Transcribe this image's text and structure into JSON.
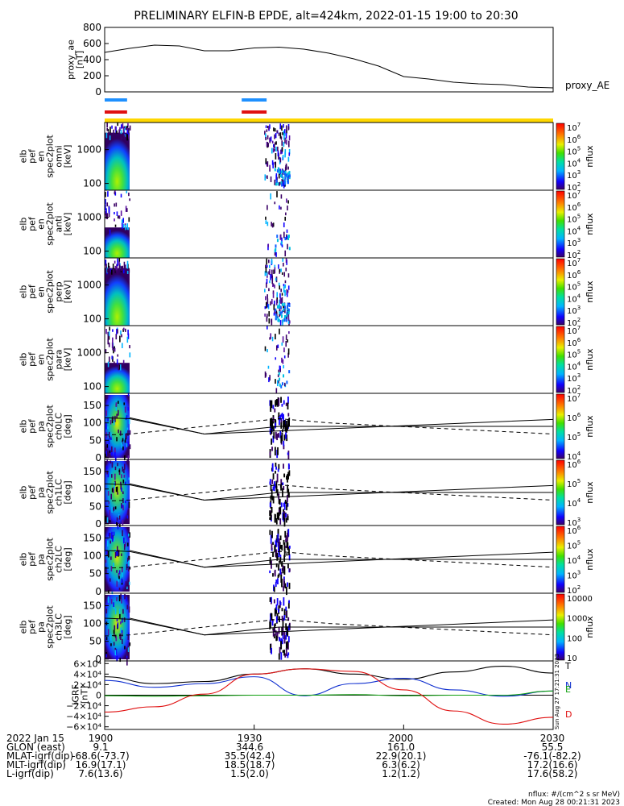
{
  "chart_data": {
    "type": "heatmap",
    "title": "PRELIMINARY ELFIN-B EPDE, alt=424km, 2022-01-15 19:00 to 20:30",
    "time_range": [
      "19:00",
      "20:30"
    ],
    "panels": [
      {
        "id": "proxy_ae",
        "type": "line",
        "ylabel": [
          "proxy_ae",
          "[nT]"
        ],
        "legend": "proxy_AE",
        "ylim": [
          0,
          800
        ],
        "yticks": [
          "0",
          "200",
          "400",
          "600",
          "800"
        ],
        "x_min": [
          0,
          5,
          10,
          15,
          20,
          25,
          30,
          35,
          40,
          45,
          50,
          55,
          60,
          65,
          70,
          75,
          80,
          85,
          90
        ],
        "values": [
          490,
          540,
          580,
          570,
          510,
          510,
          545,
          555,
          530,
          480,
          410,
          320,
          190,
          160,
          120,
          100,
          90,
          60,
          50
        ]
      },
      {
        "id": "sci_zone_bars",
        "type": "bar",
        "bars": [
          {
            "color": "#1e90ff",
            "intervals_min": [
              [
                0,
                4.5
              ],
              [
                27.5,
                32.5
              ]
            ]
          },
          {
            "color": "#e01010",
            "intervals_min": [
              [
                0,
                4.5
              ],
              [
                27.5,
                32.5
              ]
            ]
          },
          {
            "color": "#ffd700",
            "intervals_min": [
              [
                0,
                90
              ]
            ]
          }
        ]
      },
      {
        "id": "en_omni",
        "type": "heatmap",
        "ylabel": [
          "elb",
          "pef",
          "en",
          "spec2plot",
          "omni",
          "[keV]"
        ],
        "yticks": [
          "100",
          "1000"
        ],
        "zlabel": "nflux",
        "ztick_exps": [
          "2",
          "3",
          "4",
          "5",
          "6",
          "7"
        ]
      },
      {
        "id": "en_anti",
        "type": "heatmap",
        "ylabel": [
          "elb",
          "pef",
          "en",
          "spec2plot",
          "anti",
          "[keV]"
        ],
        "yticks": [
          "100",
          "1000"
        ],
        "zlabel": "nflux",
        "ztick_exps": [
          "2",
          "3",
          "4",
          "5",
          "6",
          "7"
        ]
      },
      {
        "id": "en_perp",
        "type": "heatmap",
        "ylabel": [
          "elb",
          "pef",
          "en",
          "spec2plot",
          "perp",
          "[keV]"
        ],
        "yticks": [
          "100",
          "1000"
        ],
        "zlabel": "nflux",
        "ztick_exps": [
          "2",
          "3",
          "4",
          "5",
          "6",
          "7"
        ]
      },
      {
        "id": "en_para",
        "type": "heatmap",
        "ylabel": [
          "elb",
          "pef",
          "en",
          "spec2plot",
          "para",
          "[keV]"
        ],
        "yticks": [
          "100",
          "1000"
        ],
        "zlabel": "nflux",
        "ztick_exps": [
          "2",
          "3",
          "4",
          "5",
          "6",
          "7"
        ]
      },
      {
        "id": "pa_ch0LC",
        "type": "heatmap",
        "ylabel": [
          "elb",
          "pef",
          "pa",
          "spec2plot",
          "ch0LC",
          "[deg]"
        ],
        "yticks": [
          "0",
          "50",
          "100",
          "150"
        ],
        "zlabel": "nflux",
        "ztick_exps": [
          "4",
          "5",
          "6",
          "7"
        ]
      },
      {
        "id": "pa_ch1LC",
        "type": "heatmap",
        "ylabel": [
          "elb",
          "pef",
          "pa",
          "spec2plot",
          "ch1LC",
          "[deg]"
        ],
        "yticks": [
          "0",
          "50",
          "100",
          "150"
        ],
        "zlabel": "nflux",
        "ztick_exps": [
          "3",
          "4",
          "5",
          "6"
        ]
      },
      {
        "id": "pa_ch2LC",
        "type": "heatmap",
        "ylabel": [
          "elb",
          "pef",
          "pa",
          "spec2plot",
          "ch2LC",
          "[deg]"
        ],
        "yticks": [
          "0",
          "50",
          "100",
          "150"
        ],
        "zlabel": "nflux",
        "ztick_exps": [
          "2",
          "3",
          "4",
          "5",
          "6"
        ]
      },
      {
        "id": "pa_ch3LC",
        "type": "heatmap",
        "ylabel": [
          "elb",
          "pef",
          "pa",
          "spec2plot",
          "ch3LC",
          "[deg]"
        ],
        "yticks": [
          "0",
          "50",
          "100",
          "150"
        ],
        "zlabel": "nflux",
        "zticks": [
          "10",
          "100",
          "1000",
          "10000"
        ]
      },
      {
        "id": "igrf",
        "type": "line",
        "ylabel": [
          "IGRF",
          "[nT]"
        ],
        "yticks": [
          "−6×10⁴",
          "−4×10⁴",
          "−2×10⁴",
          "0",
          "2×10⁴",
          "4×10⁴",
          "6×10⁴"
        ],
        "ylim": [
          -65000,
          65000
        ],
        "x_min": [
          0,
          10,
          20,
          30,
          40,
          50,
          60,
          70,
          80,
          90
        ],
        "series": [
          {
            "name": "T",
            "color": "#000000",
            "values": [
              35000,
              22000,
              26000,
              40000,
              50000,
              40000,
              30000,
              44000,
              55000,
              42000
            ]
          },
          {
            "name": "N",
            "color": "#1030d0",
            "values": [
              28000,
              15000,
              22000,
              35000,
              -1000,
              22000,
              32000,
              10000,
              -2000,
              8000
            ]
          },
          {
            "name": "E",
            "color": "#10a010",
            "values": [
              -1000,
              -2000,
              -1000,
              0,
              0,
              1000,
              -1000,
              0,
              0,
              8000
            ]
          },
          {
            "name": "D",
            "color": "#e01010",
            "values": [
              -32000,
              -22000,
              2000,
              40000,
              50000,
              45000,
              10000,
              -30000,
              -55000,
              -42000
            ]
          }
        ]
      }
    ],
    "x_ticks": [
      "1900",
      "1930",
      "2000",
      "2030"
    ],
    "annotation_vertical": "Sun Aug 27 17:21:31 2023",
    "orbit_rows": [
      {
        "label": "2022 Jan 15",
        "values": [
          "1900",
          "1930",
          "2000",
          "2030"
        ]
      },
      {
        "label": "GLON (east)",
        "values": [
          "9.1",
          "344.6",
          "161.0",
          "55.5"
        ]
      },
      {
        "label": "MLAT-igrf(dip)",
        "values": [
          "-68.6(-73.7)",
          "35.5(42.4)",
          "22.9(20.1)",
          "-76.1(-82.2)"
        ]
      },
      {
        "label": "MLT-igrf(dip)",
        "values": [
          "16.9(17.1)",
          "18.5(18.7)",
          "6.3(6.2)",
          "17.2(16.6)"
        ]
      },
      {
        "label": "L-igrf(dip)",
        "values": [
          "7.6(13.6)",
          "1.5(2.0)",
          "1.2(1.2)",
          "17.6(58.2)"
        ]
      }
    ],
    "footer": {
      "units": "nflux: #/(cm^2 s sr MeV)",
      "created": "Created: Mon Aug 28 00:21:31 2023"
    }
  }
}
